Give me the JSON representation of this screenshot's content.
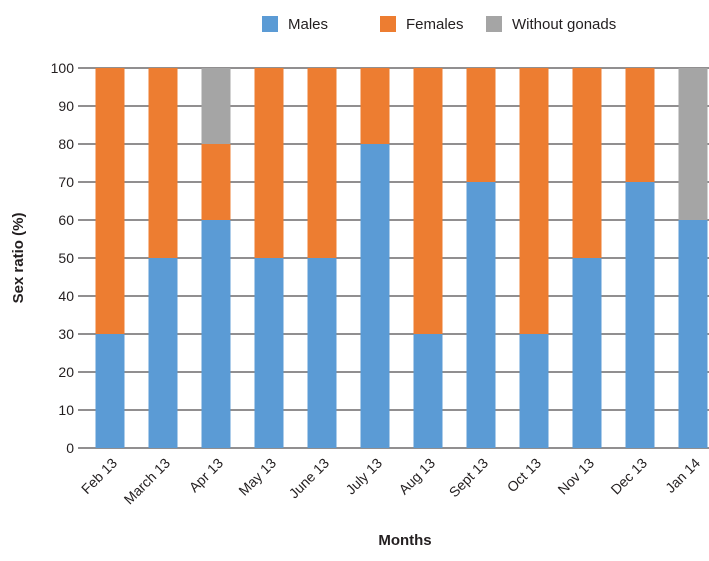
{
  "chart_data": {
    "type": "bar",
    "stacked": true,
    "categories": [
      "Feb 13",
      "March 13",
      "Apr 13",
      "May 13",
      "June 13",
      "July 13",
      "Aug 13",
      "Sept 13",
      "Oct 13",
      "Nov 13",
      "Dec 13",
      "Jan 14"
    ],
    "series": [
      {
        "name": "Males",
        "color": "#5b9bd5",
        "values": [
          30,
          50,
          60,
          50,
          50,
          80,
          30,
          70,
          30,
          50,
          70,
          60
        ]
      },
      {
        "name": "Females",
        "color": "#ed7d31",
        "values": [
          70,
          50,
          20,
          50,
          50,
          20,
          70,
          30,
          70,
          50,
          30,
          0
        ]
      },
      {
        "name": "Without gonads",
        "color": "#a5a5a5",
        "values": [
          0,
          0,
          20,
          0,
          0,
          0,
          0,
          0,
          0,
          0,
          0,
          40
        ]
      }
    ],
    "title": "",
    "xlabel": "Months",
    "ylabel": "Sex ratio (%)",
    "ylim": [
      0,
      100
    ],
    "yticks": [
      0,
      10,
      20,
      30,
      40,
      50,
      60,
      70,
      80,
      90,
      100
    ],
    "grid": true,
    "legend_position": "top"
  }
}
